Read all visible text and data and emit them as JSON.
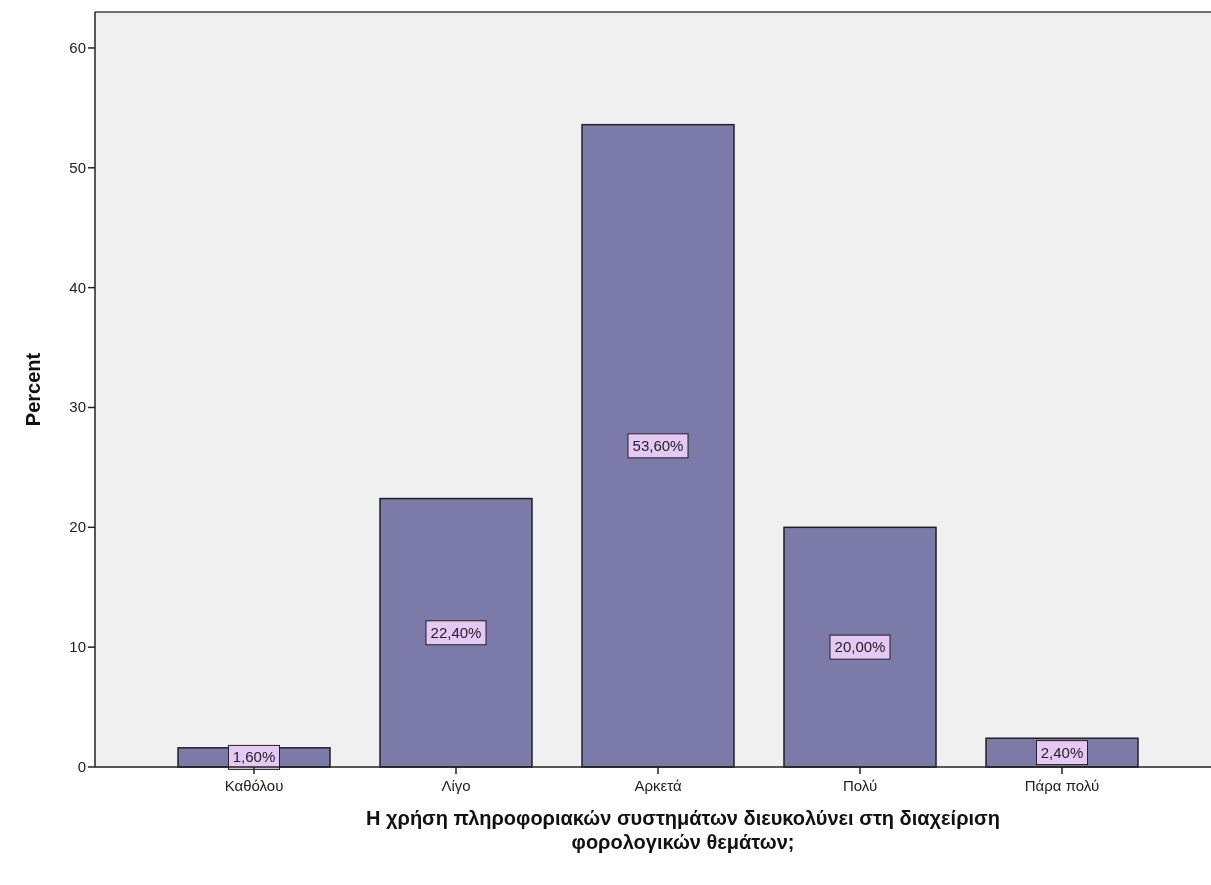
{
  "chart_data": {
    "type": "bar",
    "xlabel": "Η χρήση πληροφοριακών συστημάτων διευκολύνει στη διαχείριση\nφορολογικών θεμάτων;",
    "ylabel": "Percent",
    "categories": [
      "Καθόλου",
      "Λίγο",
      "Αρκετά",
      "Πολύ",
      "Πάρα πολύ"
    ],
    "values": [
      1.6,
      22.4,
      53.6,
      20,
      2.4
    ],
    "color": "#7b7aa8",
    "value_labels": [
      "1,60%",
      "22,40%",
      "53,60%",
      "20,00%",
      "2,40%"
    ],
    "ylim": [
      0,
      63
    ],
    "yticks": [
      0,
      10,
      20,
      30,
      40,
      50,
      60
    ],
    "grid": false
  }
}
